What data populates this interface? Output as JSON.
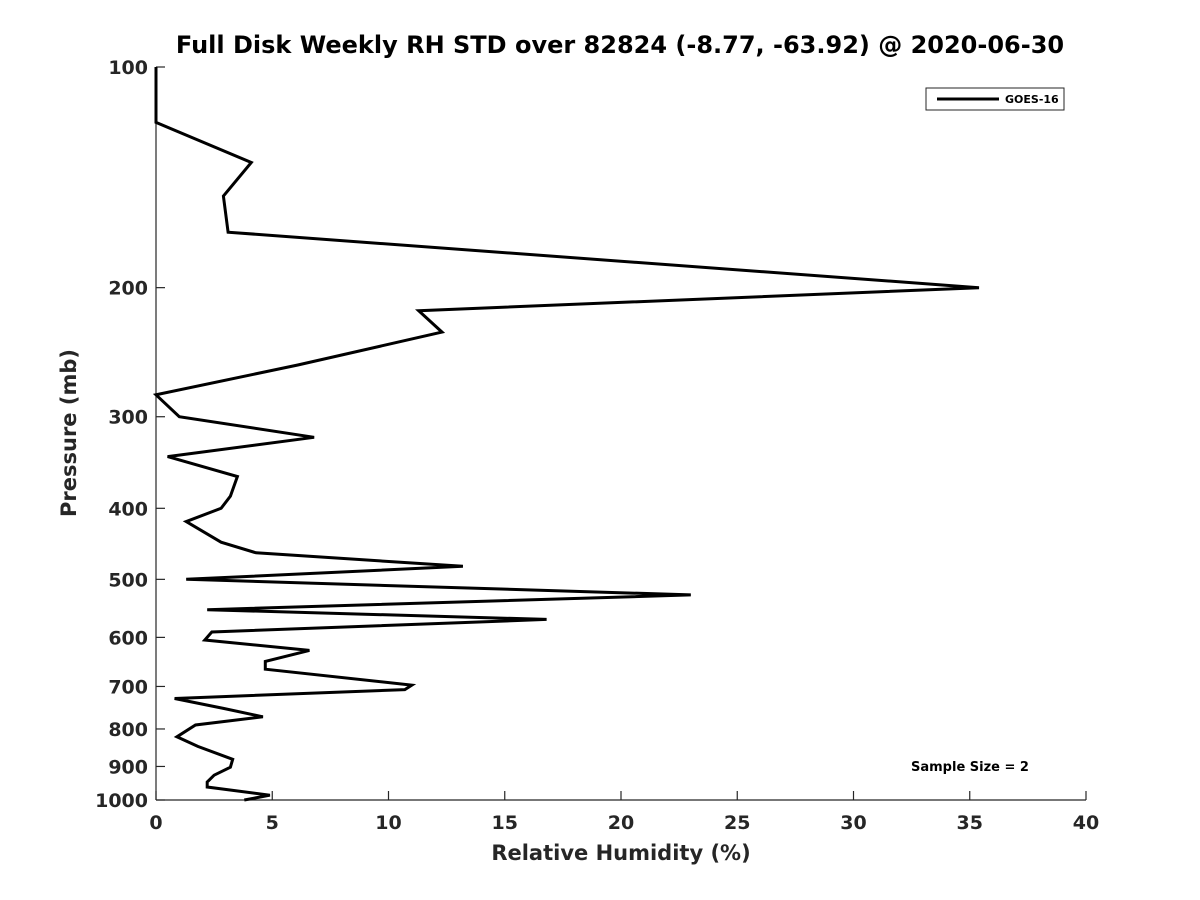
{
  "chart_data": {
    "type": "line",
    "title": "Full Disk Weekly RH STD over 82824 (-8.77, -63.92) @ 2020-06-30",
    "xlabel": "Relative Humidity (%)",
    "ylabel": "Pressure (mb)",
    "xlim": [
      0,
      40
    ],
    "ylim": [
      100,
      1000
    ],
    "y_scale": "log",
    "y_reversed": true,
    "x_ticks": [
      "0",
      "5",
      "10",
      "15",
      "20",
      "25",
      "30",
      "35",
      "40"
    ],
    "y_ticks": [
      "100",
      "200",
      "300",
      "400",
      "500",
      "600",
      "700",
      "800",
      "900",
      "1000"
    ],
    "grid": false,
    "legend": {
      "placement": "top-right",
      "entries": [
        "GOES-16"
      ]
    },
    "annotation": "Sample Size = 2",
    "series": [
      {
        "name": "GOES-16",
        "color": "#000000",
        "points": [
          [
            0.0,
            100
          ],
          [
            0.0,
            103
          ],
          [
            0.0,
            107
          ],
          [
            0.0,
            112
          ],
          [
            0.0,
            119
          ],
          [
            4.1,
            135
          ],
          [
            2.9,
            150
          ],
          [
            3.1,
            168
          ],
          [
            35.4,
            200
          ],
          [
            11.3,
            215
          ],
          [
            12.3,
            230
          ],
          [
            6.1,
            255
          ],
          [
            0.0,
            280
          ],
          [
            1.0,
            300
          ],
          [
            6.8,
            320
          ],
          [
            0.5,
            340
          ],
          [
            3.5,
            362
          ],
          [
            3.2,
            385
          ],
          [
            2.8,
            400
          ],
          [
            1.3,
            417
          ],
          [
            2.8,
            445
          ],
          [
            4.3,
            460
          ],
          [
            13.2,
            480
          ],
          [
            1.3,
            500
          ],
          [
            23.0,
            525
          ],
          [
            2.2,
            550
          ],
          [
            16.8,
            567
          ],
          [
            2.4,
            590
          ],
          [
            2.1,
            605
          ],
          [
            6.6,
            625
          ],
          [
            4.7,
            647
          ],
          [
            4.7,
            663
          ],
          [
            11.0,
            697
          ],
          [
            10.7,
            707
          ],
          [
            0.8,
            727
          ],
          [
            2.9,
            750
          ],
          [
            4.6,
            770
          ],
          [
            1.7,
            790
          ],
          [
            0.9,
            820
          ],
          [
            1.8,
            845
          ],
          [
            3.3,
            880
          ],
          [
            3.2,
            902
          ],
          [
            2.5,
            925
          ],
          [
            2.2,
            945
          ],
          [
            2.2,
            960
          ],
          [
            4.9,
            985
          ],
          [
            3.8,
            1000
          ]
        ]
      }
    ]
  }
}
